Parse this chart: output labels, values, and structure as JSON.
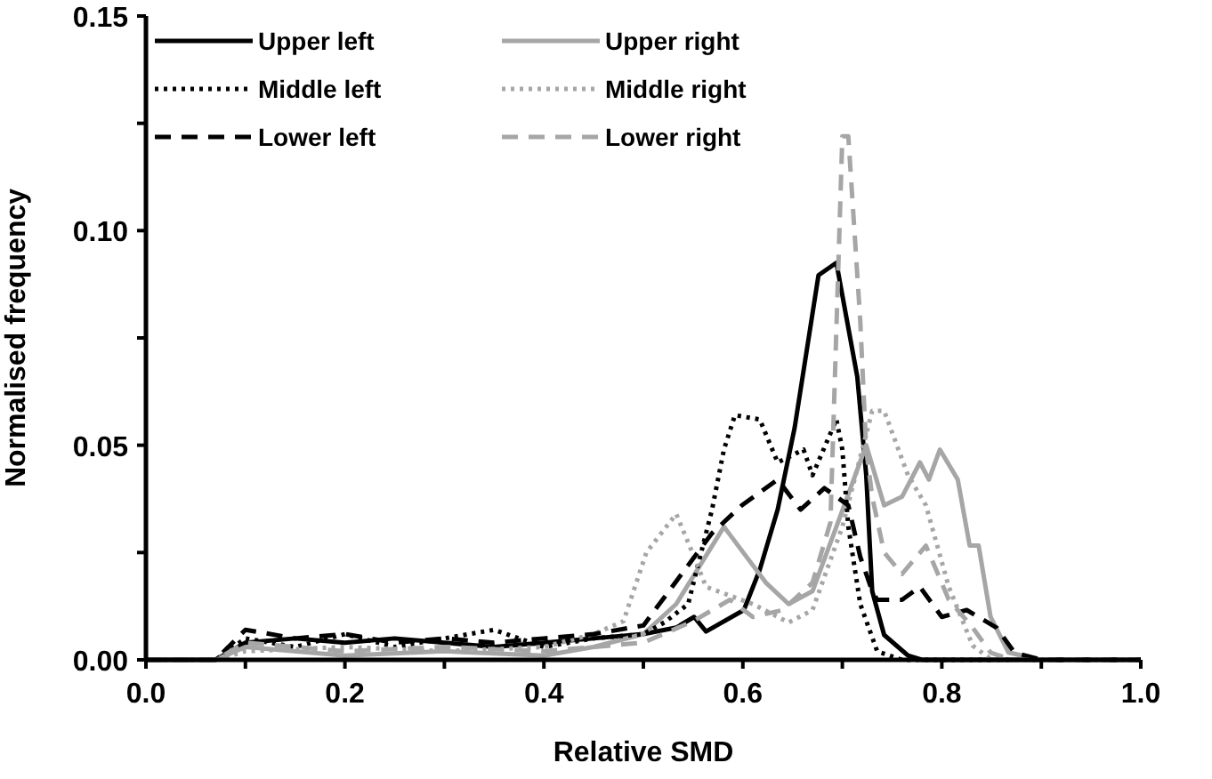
{
  "chart_data": {
    "type": "line",
    "xlabel": "Relative SMD",
    "ylabel": "Normalised frequency",
    "xlim": [
      0,
      1
    ],
    "ylim": [
      0,
      0.15
    ],
    "xticks": [
      {
        "value": 0,
        "label": "0.0"
      },
      {
        "value": 0.1,
        "label": null
      },
      {
        "value": 0.2,
        "label": "0.2"
      },
      {
        "value": 0.3,
        "label": null
      },
      {
        "value": 0.4,
        "label": "0.4"
      },
      {
        "value": 0.5,
        "label": null
      },
      {
        "value": 0.6,
        "label": "0.6"
      },
      {
        "value": 0.7,
        "label": null
      },
      {
        "value": 0.8,
        "label": "0.8"
      },
      {
        "value": 0.9,
        "label": null
      },
      {
        "value": 1,
        "label": "1.0"
      }
    ],
    "yticks": [
      {
        "value": 0,
        "label": "0.00"
      },
      {
        "value": 0.025,
        "label": null
      },
      {
        "value": 0.05,
        "label": "0.05"
      },
      {
        "value": 0.075,
        "label": null
      },
      {
        "value": 0.1,
        "label": "0.10"
      },
      {
        "value": 0.125,
        "label": null
      },
      {
        "value": 0.15,
        "label": "0.15"
      }
    ],
    "grid": false,
    "legend": "top left",
    "marker": "none",
    "series": [
      {
        "name": "Upper left",
        "color": "#000000",
        "line_style": "solid",
        "x": [
          0,
          0.07,
          0.1,
          0.15,
          0.2,
          0.25,
          0.3,
          0.35,
          0.4,
          0.45,
          0.5,
          0.533,
          0.551,
          0.563,
          0.601,
          0.617,
          0.635,
          0.652,
          0.676,
          0.694,
          0.715,
          0.724,
          0.73,
          0.742,
          0.766,
          0.78,
          1
        ],
        "values": [
          0,
          0,
          0.004,
          0.005,
          0.004,
          0.005,
          0.004,
          0.003,
          0.004,
          0.005,
          0.006,
          0.0075,
          0.01,
          0.0066,
          0.0116,
          0.021,
          0.035,
          0.054,
          0.0896,
          0.0925,
          0.066,
          0.043,
          0.016,
          0.0058,
          0.001,
          0,
          0
        ]
      },
      {
        "name": "Upper right",
        "color": "#a6a6a6",
        "line_style": "solid",
        "x": [
          0,
          0.07,
          0.1,
          0.2,
          0.3,
          0.4,
          0.45,
          0.5,
          0.533,
          0.581,
          0.623,
          0.646,
          0.67,
          0.694,
          0.724,
          0.742,
          0.76,
          0.778,
          0.787,
          0.798,
          0.816,
          0.828,
          0.837,
          0.849,
          0.867,
          0.9,
          1
        ],
        "values": [
          0,
          0,
          0.003,
          0.001,
          0.002,
          0.001,
          0.003,
          0.006,
          0.013,
          0.031,
          0.018,
          0.013,
          0.016,
          0.031,
          0.05,
          0.036,
          0.038,
          0.046,
          0.042,
          0.049,
          0.042,
          0.0266,
          0.0266,
          0.01,
          0.0017,
          0,
          0
        ]
      },
      {
        "name": "Middle left",
        "color": "#000000",
        "line_style": "dotted",
        "x": [
          0,
          0.07,
          0.1,
          0.15,
          0.2,
          0.25,
          0.3,
          0.35,
          0.4,
          0.45,
          0.5,
          0.521,
          0.545,
          0.557,
          0.569,
          0.581,
          0.592,
          0.617,
          0.635,
          0.661,
          0.67,
          0.694,
          0.7,
          0.706,
          0.718,
          0.735,
          0.76,
          1
        ],
        "values": [
          0,
          0,
          0.005,
          0.003,
          0.006,
          0.003,
          0.005,
          0.007,
          0.003,
          0.005,
          0.006,
          0.0087,
          0.013,
          0.024,
          0.035,
          0.049,
          0.057,
          0.056,
          0.046,
          0.049,
          0.043,
          0.056,
          0.049,
          0.031,
          0.013,
          0.002,
          0,
          0
        ]
      },
      {
        "name": "Middle right",
        "color": "#a6a6a6",
        "line_style": "dotted",
        "x": [
          0,
          0.07,
          0.1,
          0.2,
          0.3,
          0.4,
          0.45,
          0.48,
          0.503,
          0.533,
          0.551,
          0.563,
          0.61,
          0.646,
          0.67,
          0.7,
          0.73,
          0.742,
          0.766,
          0.784,
          0.807,
          0.831,
          0.85,
          1
        ],
        "values": [
          0,
          0,
          0.002,
          0.003,
          0.002,
          0.003,
          0.006,
          0.009,
          0.025,
          0.034,
          0.024,
          0.017,
          0.013,
          0.0087,
          0.0116,
          0.031,
          0.058,
          0.058,
          0.043,
          0.036,
          0.017,
          0.0033,
          0,
          0
        ]
      },
      {
        "name": "Lower left",
        "color": "#000000",
        "line_style": "dashed",
        "x": [
          0,
          0.07,
          0.1,
          0.15,
          0.2,
          0.25,
          0.3,
          0.35,
          0.4,
          0.45,
          0.5,
          0.569,
          0.599,
          0.635,
          0.658,
          0.682,
          0.694,
          0.706,
          0.718,
          0.73,
          0.735,
          0.76,
          0.778,
          0.8,
          0.825,
          0.855,
          0.873,
          0.9,
          1
        ],
        "values": [
          0,
          0,
          0.007,
          0.005,
          0.006,
          0.004,
          0.005,
          0.004,
          0.005,
          0.006,
          0.008,
          0.0295,
          0.036,
          0.042,
          0.035,
          0.04,
          0.038,
          0.036,
          0.024,
          0.016,
          0.014,
          0.014,
          0.017,
          0.01,
          0.0116,
          0.0075,
          0.0017,
          0,
          0
        ]
      },
      {
        "name": "Lower right",
        "color": "#a6a6a6",
        "line_style": "dashed",
        "x": [
          0,
          0.07,
          0.1,
          0.2,
          0.3,
          0.4,
          0.5,
          0.55,
          0.587,
          0.61,
          0.64,
          0.67,
          0.688,
          0.7,
          0.706,
          0.718,
          0.724,
          0.73,
          0.742,
          0.76,
          0.784,
          0.807,
          0.831,
          0.849,
          0.87,
          1
        ],
        "values": [
          0,
          0,
          0.004,
          0.002,
          0.003,
          0.002,
          0.004,
          0.009,
          0.014,
          0.01,
          0.0116,
          0.018,
          0.032,
          0.122,
          0.122,
          0.079,
          0.049,
          0.038,
          0.025,
          0.02,
          0.0266,
          0.014,
          0.0075,
          0.0017,
          0,
          0
        ]
      }
    ]
  }
}
